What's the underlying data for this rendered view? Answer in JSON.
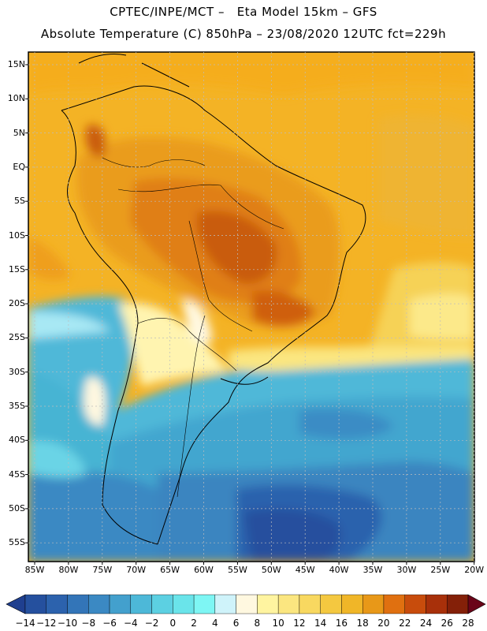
{
  "header": {
    "line1": "CPTEC/INPE/MCT –   Eta Model 15km – GFS",
    "line2": "Absolute Temperature (C) 850hPa – 23/08/2020 12UTC fct=229h"
  },
  "map": {
    "lat_labels": [
      "15N",
      "10N",
      "5N",
      "EQ",
      "5S",
      "10S",
      "15S",
      "20S",
      "25S",
      "30S",
      "35S",
      "40S",
      "45S",
      "50S",
      "55S"
    ],
    "lon_labels": [
      "85W",
      "80W",
      "75W",
      "70W",
      "65W",
      "60W",
      "55W",
      "50W",
      "45W",
      "40W",
      "35W",
      "30W",
      "25W",
      "20W"
    ]
  },
  "colorbar": {
    "labels": [
      "-14",
      "-12",
      "-10",
      "-8",
      "-6",
      "-4",
      "-2",
      "0",
      "2",
      "4",
      "6",
      "8",
      "10",
      "12",
      "14",
      "16",
      "18",
      "20",
      "22",
      "24",
      "26",
      "28"
    ],
    "colors": [
      "#1f3f8f",
      "#25509e",
      "#2c62ad",
      "#3375b8",
      "#3b89c3",
      "#43a0cd",
      "#4db8d8",
      "#5cd0e2",
      "#6ae4ea",
      "#7ef6f4",
      "#cff3fa",
      "#fff8e0",
      "#fff4a0",
      "#fbe680",
      "#f8d860",
      "#f4c840",
      "#f0b628",
      "#e89818",
      "#e07010",
      "#c84c0c",
      "#a8300a",
      "#842008",
      "#6a0418"
    ]
  }
}
